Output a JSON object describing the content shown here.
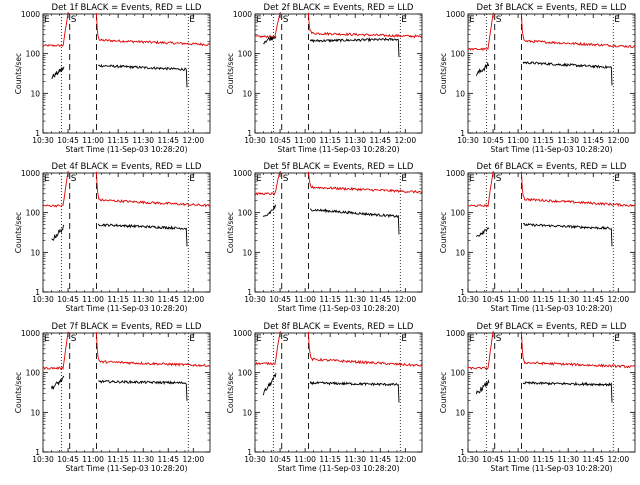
{
  "colors": {
    "events": "#000000",
    "lld": "#e00000",
    "axis": "#000000"
  },
  "chart_data": {
    "type": "line",
    "layout": "3x3 grid of small multiples",
    "x_ticks": [
      "10:30",
      "10:45",
      "11:00",
      "11:15",
      "11:30",
      "11:45",
      "12:00"
    ],
    "x_range_minutes_after_1030": [
      0,
      100
    ],
    "y_scale": "log",
    "ylim": [
      1,
      1000
    ],
    "y_ticks": [
      "1",
      "10",
      "100",
      "1000"
    ],
    "xlabel": "Start Time (11-Sep-03 10:28:20)",
    "ylabel": "Counts/sec",
    "legend_text": "BLACK = Events, RED = LLD",
    "series_names": [
      "Events",
      "LLD"
    ],
    "markers": {
      "start": "S",
      "end": "E"
    },
    "marker_minutes": {
      "dotted": [
        11,
        87
      ],
      "dashed": [
        16,
        32
      ]
    },
    "panels": [
      {
        "title": "Det 1f BLACK = Events, RED = LLD",
        "lld_pre": 160,
        "lld_peak": 1050,
        "lld_post": 220,
        "lld_end": 170,
        "ev_start": 25,
        "ev_pre_end": 45,
        "ev_post": 50,
        "ev_end": 40,
        "markers_top": "normal"
      },
      {
        "title": "Det 2f BLACK = Events, RED = LLD",
        "lld_pre": 270,
        "lld_peak": 1150,
        "lld_post": 330,
        "lld_end": 270,
        "ev_start": 200,
        "ev_pre_end": 290,
        "ev_post": 210,
        "ev_end": 230,
        "markers_top": "normal"
      },
      {
        "title": "Det 3f BLACK = Events, RED = LLD",
        "lld_pre": 130,
        "lld_peak": 1050,
        "lld_post": 210,
        "lld_end": 150,
        "ev_start": 30,
        "ev_pre_end": 55,
        "ev_post": 60,
        "ev_end": 45,
        "markers_top": "normal"
      },
      {
        "title": "Det 4f BLACK = Events, RED = LLD",
        "lld_pre": 150,
        "lld_peak": 1100,
        "lld_post": 210,
        "lld_end": 150,
        "ev_start": 20,
        "ev_pre_end": 45,
        "ev_post": 50,
        "ev_end": 40,
        "markers_top": "normal"
      },
      {
        "title": "Det 5f BLACK = Events, RED = LLD",
        "lld_pre": 300,
        "lld_peak": 1200,
        "lld_post": 440,
        "lld_end": 330,
        "ev_start": 70,
        "ev_pre_end": 150,
        "ev_post": 120,
        "ev_end": 80,
        "markers_top": "normal"
      },
      {
        "title": "Det 6f BLACK = Events, RED = LLD",
        "lld_pre": 150,
        "lld_peak": 1100,
        "lld_post": 220,
        "lld_end": 150,
        "ev_start": 25,
        "ev_pre_end": 45,
        "ev_post": 50,
        "ev_end": 40,
        "markers_top": "normal"
      },
      {
        "title": "Det 7f BLACK = Events, RED = LLD",
        "lld_pre": 130,
        "lld_peak": 1050,
        "lld_post": 190,
        "lld_end": 150,
        "ev_start": 40,
        "ev_pre_end": 75,
        "ev_post": 60,
        "ev_end": 55,
        "markers_top": "normal"
      },
      {
        "title": "Det 8f BLACK = Events, RED = LLD",
        "lld_pre": 170,
        "lld_peak": 1100,
        "lld_post": 220,
        "lld_end": 150,
        "ev_start": 30,
        "ev_pre_end": 90,
        "ev_post": 55,
        "ev_end": 50,
        "markers_top": "normal"
      },
      {
        "title": "Det 9f BLACK = Events, RED = LLD",
        "lld_pre": 130,
        "lld_peak": 1100,
        "lld_post": 180,
        "lld_end": 140,
        "ev_start": 30,
        "ev_pre_end": 60,
        "ev_post": 55,
        "ev_end": 50,
        "markers_top": "normal"
      }
    ]
  }
}
